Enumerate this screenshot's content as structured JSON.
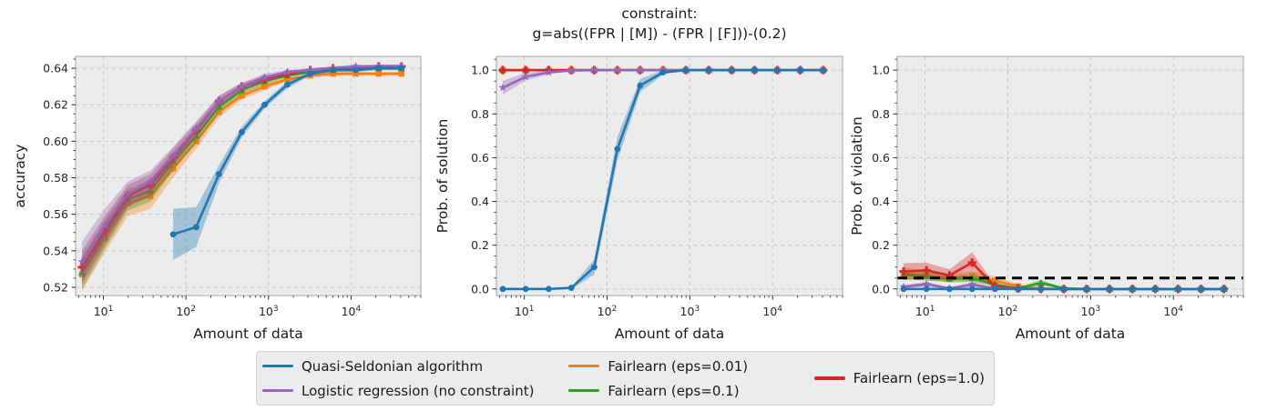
{
  "figure": {
    "title_line1": "constraint:",
    "title_line2": "g=abs((FPR | [M]) - (FPR | [F]))-(0.2)"
  },
  "style": {
    "axes_bg": "#ececec",
    "grid_color": "#c9c9c9",
    "spine_color": "#a3a3a3",
    "tick_color": "#262626",
    "text_color": "#1a1a1a",
    "band_alpha": 0.35,
    "threshold_color": "#000000"
  },
  "legend": {
    "columns": [
      [
        {
          "label": "Quasi-Seldonian algorithm",
          "color": "#1f77b4"
        },
        {
          "label": "Logistic regression (no constraint)",
          "color": "#9467bd"
        }
      ],
      [
        {
          "label": "Fairlearn (eps=0.01)",
          "color": "#ff7f0e"
        },
        {
          "label": "Fairlearn (eps=0.1)",
          "color": "#2ca02c"
        }
      ],
      [
        {
          "label": "Fairlearn (eps=1.0)",
          "color": "#d62728"
        }
      ]
    ]
  },
  "chart_data": [
    {
      "type": "line",
      "xscale": "log",
      "grid": true,
      "xlabel": "Amount of data",
      "ylabel": "accuracy",
      "xlim": [
        4.6,
        70000
      ],
      "ylim": [
        0.5155,
        0.6465
      ],
      "xticks": [
        10,
        100,
        1000,
        10000
      ],
      "yticks": [
        0.52,
        0.54,
        0.56,
        0.58,
        0.6,
        0.62,
        0.64
      ],
      "ytick_labels": [
        "0.52",
        "0.54",
        "0.56",
        "0.58",
        "0.60",
        "0.62",
        "0.64"
      ],
      "yminor_step": 0.005,
      "series": [
        {
          "name": "Fairlearn (eps=0.01)",
          "color": "#ff7f0e",
          "marker": "square",
          "x": [
            5.5,
            10.4,
            19.7,
            37,
            70,
            133,
            251,
            474,
            896,
            1690,
            3200,
            6050,
            11400,
            21600,
            40800
          ],
          "y": [
            0.527,
            0.547,
            0.566,
            0.57,
            0.585,
            0.6,
            0.616,
            0.625,
            0.63,
            0.634,
            0.636,
            0.637,
            0.637,
            0.637,
            0.637
          ],
          "err": [
            0.009,
            0.008,
            0.007,
            0.007,
            0.005,
            0.004,
            0.003,
            0.002,
            0.002,
            0.001,
            0.001,
            0.001,
            0.001,
            0.001,
            0.001
          ]
        },
        {
          "name": "Fairlearn (eps=0.1)",
          "color": "#2ca02c",
          "marker": "triangle",
          "x": [
            5.5,
            10.4,
            19.7,
            37,
            70,
            133,
            251,
            474,
            896,
            1690,
            3200,
            6050,
            11400,
            21600,
            40800
          ],
          "y": [
            0.528,
            0.549,
            0.568,
            0.573,
            0.589,
            0.603,
            0.619,
            0.628,
            0.633,
            0.636,
            0.638,
            0.639,
            0.64,
            0.64,
            0.64
          ],
          "err": [
            0.009,
            0.008,
            0.006,
            0.006,
            0.005,
            0.004,
            0.003,
            0.002,
            0.002,
            0.001,
            0.001,
            0.001,
            0.001,
            0.001,
            0.001
          ]
        },
        {
          "name": "Fairlearn (eps=1.0)",
          "color": "#d62728",
          "marker": "plus",
          "x": [
            5.5,
            10.4,
            19.7,
            37,
            70,
            133,
            251,
            474,
            896,
            1690,
            3200,
            6050,
            11400,
            21600,
            40800
          ],
          "y": [
            0.531,
            0.551,
            0.57,
            0.576,
            0.591,
            0.606,
            0.622,
            0.63,
            0.634,
            0.637,
            0.639,
            0.64,
            0.64,
            0.641,
            0.641
          ],
          "err": [
            0.009,
            0.008,
            0.006,
            0.006,
            0.005,
            0.004,
            0.003,
            0.002,
            0.002,
            0.001,
            0.001,
            0.001,
            0.001,
            0.001,
            0.001
          ]
        },
        {
          "name": "Logistic regression (no constraint)",
          "color": "#9467bd",
          "marker": "star",
          "x": [
            5.5,
            10.4,
            19.7,
            37,
            70,
            133,
            251,
            474,
            896,
            1690,
            3200,
            6050,
            11400,
            21600,
            40800
          ],
          "y": [
            0.534,
            0.554,
            0.571,
            0.578,
            0.592,
            0.607,
            0.622,
            0.63,
            0.635,
            0.638,
            0.639,
            0.64,
            0.641,
            0.641,
            0.641
          ],
          "err": [
            0.011,
            0.009,
            0.007,
            0.006,
            0.005,
            0.004,
            0.003,
            0.002,
            0.002,
            0.001,
            0.001,
            0.001,
            0.001,
            0.001,
            0.001
          ]
        },
        {
          "name": "Quasi-Seldonian algorithm",
          "color": "#1f77b4",
          "marker": "circle",
          "x": [
            70,
            133,
            251,
            474,
            896,
            1690,
            3200,
            6050,
            11400,
            21600,
            40800
          ],
          "y": [
            0.549,
            0.553,
            0.582,
            0.605,
            0.62,
            0.631,
            0.637,
            0.639,
            0.639,
            0.64,
            0.64
          ],
          "err": [
            0.014,
            0.011,
            0.005,
            0.003,
            0.002,
            0.002,
            0.001,
            0.001,
            0.001,
            0.001,
            0.001
          ]
        }
      ]
    },
    {
      "type": "line",
      "xscale": "log",
      "grid": true,
      "xlabel": "Amount of data",
      "ylabel": "Prob. of solution",
      "xlim": [
        4.6,
        70000
      ],
      "ylim": [
        -0.03,
        1.063
      ],
      "xticks": [
        10,
        100,
        1000,
        10000
      ],
      "yticks": [
        0,
        0.2,
        0.4,
        0.6,
        0.8,
        1.0
      ],
      "ytick_labels": [
        "0.0",
        "0.2",
        "0.4",
        "0.6",
        "0.8",
        "1.0"
      ],
      "yminor_step": 0.05,
      "series": [
        {
          "name": "Fairlearn (eps=0.01)",
          "color": "#ff7f0e",
          "marker": "square",
          "x": [
            5.5,
            10.4,
            19.7,
            37,
            70,
            133,
            251,
            474,
            896,
            1690,
            3200,
            6050,
            11400,
            21600,
            40800
          ],
          "y": [
            1,
            1,
            1,
            1,
            1,
            1,
            1,
            1,
            1,
            1,
            1,
            1,
            1,
            1,
            1
          ],
          "err": [
            0,
            0,
            0,
            0,
            0,
            0,
            0,
            0,
            0,
            0,
            0,
            0,
            0,
            0,
            0
          ]
        },
        {
          "name": "Fairlearn (eps=0.1)",
          "color": "#2ca02c",
          "marker": "triangle",
          "x": [
            5.5,
            10.4,
            19.7,
            37,
            70,
            133,
            251,
            474,
            896,
            1690,
            3200,
            6050,
            11400,
            21600,
            40800
          ],
          "y": [
            1,
            1,
            1,
            1,
            1,
            1,
            1,
            1,
            1,
            1,
            1,
            1,
            1,
            1,
            1
          ],
          "err": [
            0,
            0,
            0,
            0,
            0,
            0,
            0,
            0,
            0,
            0,
            0,
            0,
            0,
            0,
            0
          ]
        },
        {
          "name": "Fairlearn (eps=1.0)",
          "color": "#d62728",
          "marker": "plus",
          "x": [
            5.5,
            10.4,
            19.7,
            37,
            70,
            133,
            251,
            474,
            896,
            1690,
            3200,
            6050,
            11400,
            21600,
            40800
          ],
          "y": [
            1,
            1,
            1,
            1,
            1,
            1,
            1,
            1,
            1,
            1,
            1,
            1,
            1,
            1,
            1
          ],
          "err": [
            0,
            0,
            0,
            0,
            0,
            0,
            0,
            0,
            0,
            0,
            0,
            0,
            0,
            0,
            0
          ]
        },
        {
          "name": "Logistic regression (no constraint)",
          "color": "#9467bd",
          "marker": "star",
          "x": [
            5.5,
            10.4,
            19.7,
            37,
            70,
            133,
            251,
            474,
            896,
            1690,
            3200,
            6050,
            11400,
            21600,
            40800
          ],
          "y": [
            0.92,
            0.97,
            0.99,
            0.998,
            1,
            1,
            1,
            1,
            1,
            1,
            1,
            1,
            1,
            1,
            1
          ],
          "err": [
            0.032,
            0.017,
            0.008,
            0.003,
            0.001,
            0,
            0,
            0,
            0,
            0,
            0,
            0,
            0,
            0,
            0
          ]
        },
        {
          "name": "Quasi-Seldonian algorithm",
          "color": "#1f77b4",
          "marker": "circle",
          "x": [
            5.5,
            10.4,
            19.7,
            37,
            70,
            133,
            251,
            474,
            896,
            1690,
            3200,
            6050,
            11400,
            21600,
            40800
          ],
          "y": [
            0,
            0,
            0,
            0.005,
            0.1,
            0.64,
            0.93,
            0.99,
            1,
            1,
            1,
            1,
            1,
            1,
            1
          ],
          "err": [
            0.003,
            0.003,
            0.003,
            0.005,
            0.035,
            0.055,
            0.03,
            0.01,
            0.002,
            0,
            0,
            0,
            0,
            0,
            0
          ]
        }
      ]
    },
    {
      "type": "line",
      "xscale": "log",
      "grid": true,
      "xlabel": "Amount of data",
      "ylabel": "Prob. of violation",
      "xlim": [
        4.6,
        70000
      ],
      "ylim": [
        -0.03,
        1.063
      ],
      "xticks": [
        10,
        100,
        1000,
        10000
      ],
      "yticks": [
        0,
        0.2,
        0.4,
        0.6,
        0.8,
        1.0
      ],
      "ytick_labels": [
        "0.0",
        "0.2",
        "0.4",
        "0.6",
        "0.8",
        "1.0"
      ],
      "yminor_step": 0.05,
      "threshold": {
        "y": 0.05,
        "style": "dashed",
        "color": "#000000"
      },
      "series": [
        {
          "name": "Fairlearn (eps=0.01)",
          "color": "#ff7f0e",
          "marker": "square",
          "x": [
            5.5,
            10.4,
            19.7,
            37,
            70,
            133,
            251,
            474,
            896,
            1690,
            3200,
            6050,
            11400,
            21600,
            40800
          ],
          "y": [
            0.072,
            0.06,
            0.05,
            0.058,
            0.038,
            0.012,
            0.002,
            0,
            0,
            0,
            0,
            0,
            0,
            0,
            0
          ],
          "err": [
            0.028,
            0.022,
            0.018,
            0.022,
            0.02,
            0.01,
            0.002,
            0,
            0,
            0,
            0,
            0,
            0,
            0,
            0
          ]
        },
        {
          "name": "Fairlearn (eps=0.1)",
          "color": "#2ca02c",
          "marker": "triangle",
          "x": [
            5.5,
            10.4,
            19.7,
            37,
            70,
            133,
            251,
            474,
            896,
            1690,
            3200,
            6050,
            11400,
            21600,
            40800
          ],
          "y": [
            0.065,
            0.058,
            0.045,
            0.05,
            0.02,
            0.003,
            0.028,
            0.003,
            0,
            0,
            0,
            0,
            0,
            0,
            0
          ],
          "err": [
            0.022,
            0.02,
            0.015,
            0.018,
            0.01,
            0.003,
            0.014,
            0.003,
            0,
            0,
            0,
            0,
            0,
            0,
            0
          ]
        },
        {
          "name": "Fairlearn (eps=1.0)",
          "color": "#d62728",
          "marker": "plus",
          "x": [
            5.5,
            10.4,
            19.7,
            37,
            70,
            133,
            251,
            474,
            896,
            1690,
            3200,
            6050,
            11400,
            21600,
            40800
          ],
          "y": [
            0.08,
            0.085,
            0.062,
            0.12,
            0.01,
            0.002,
            0,
            0,
            0,
            0,
            0,
            0,
            0,
            0,
            0
          ],
          "err": [
            0.038,
            0.035,
            0.028,
            0.048,
            0.008,
            0.002,
            0,
            0,
            0,
            0,
            0,
            0,
            0,
            0,
            0
          ]
        },
        {
          "name": "Logistic regression (no constraint)",
          "color": "#9467bd",
          "marker": "star",
          "x": [
            5.5,
            10.4,
            19.7,
            37,
            70,
            133,
            251,
            474,
            896,
            1690,
            3200,
            6050,
            11400,
            21600,
            40800
          ],
          "y": [
            0.01,
            0.022,
            0.003,
            0.02,
            0.002,
            0,
            0,
            0,
            0,
            0,
            0,
            0,
            0,
            0,
            0
          ],
          "err": [
            0.008,
            0.012,
            0.003,
            0.012,
            0.002,
            0,
            0,
            0,
            0,
            0,
            0,
            0,
            0,
            0,
            0
          ]
        },
        {
          "name": "Quasi-Seldonian algorithm",
          "color": "#1f77b4",
          "marker": "circle",
          "x": [
            5.5,
            10.4,
            19.7,
            37,
            70,
            133,
            251,
            474,
            896,
            1690,
            3200,
            6050,
            11400,
            21600,
            40800
          ],
          "y": [
            0,
            0,
            0,
            0,
            0,
            0,
            0,
            0,
            0,
            0,
            0,
            0,
            0,
            0,
            0
          ],
          "err": [
            0.004,
            0.004,
            0.003,
            0.003,
            0.003,
            0.002,
            0.002,
            0.002,
            0.002,
            0.002,
            0.002,
            0.002,
            0.002,
            0.002,
            0.002
          ]
        }
      ]
    }
  ]
}
